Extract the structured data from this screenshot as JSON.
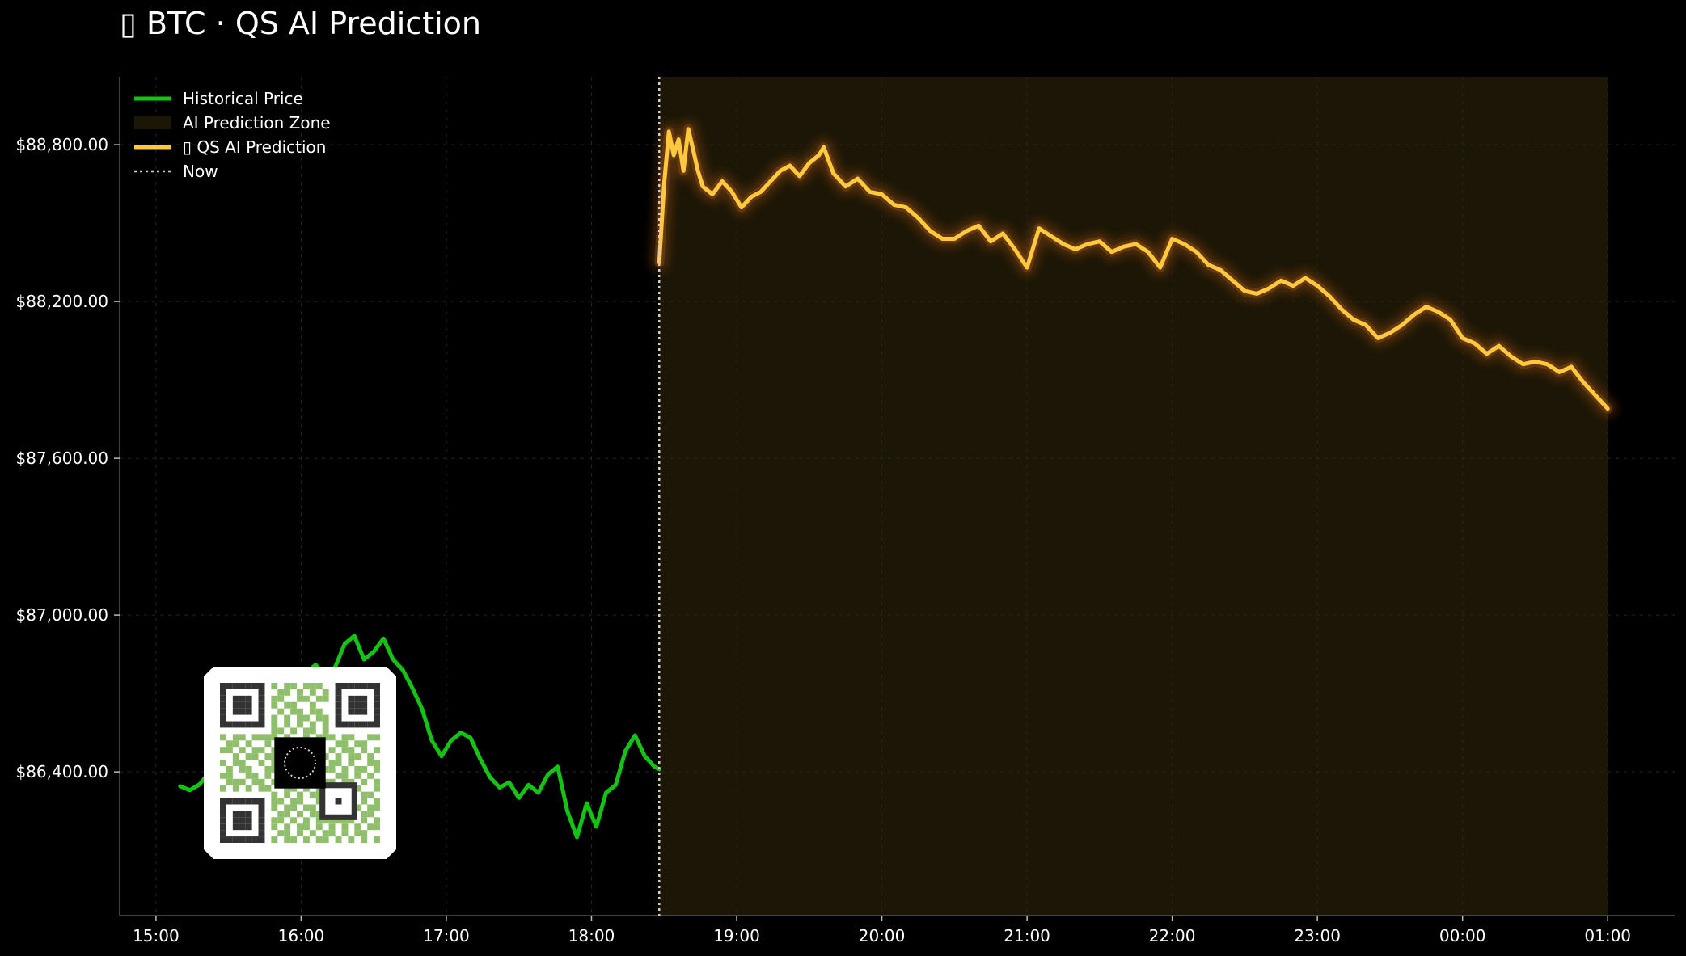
{
  "chart_data": {
    "type": "line",
    "title": "▯ BTC · QS AI Prediction",
    "xlabel": "",
    "ylabel": "",
    "x_ticks": [
      "15:00",
      "16:00",
      "17:00",
      "18:00",
      "19:00",
      "20:00",
      "21:00",
      "22:00",
      "23:00",
      "00:00",
      "01:00"
    ],
    "xlim": [
      "14:45",
      "01:28"
    ],
    "y_ticks": [
      86400,
      87000,
      87600,
      88200,
      88800
    ],
    "y_tick_labels": [
      "$86,400.00",
      "$87,000.00",
      "$87,600.00",
      "$88,200.00",
      "$88,800.00"
    ],
    "ylim": [
      85850,
      89060
    ],
    "grid": true,
    "legend_position": "top-left",
    "now_time": "18:28",
    "prediction_zone": [
      "18:28",
      "01:00"
    ],
    "legend": [
      {
        "key": "historical",
        "label": "Historical Price",
        "style": "line",
        "color": "#13c413"
      },
      {
        "key": "zone",
        "label": "AI Prediction Zone",
        "style": "patch",
        "color": "#1c1607"
      },
      {
        "key": "prediction",
        "label": "▯ QS AI Prediction",
        "style": "line",
        "color": "#ffc83d"
      },
      {
        "key": "now",
        "label": "Now",
        "style": "dotted",
        "color": "#cfcfcf"
      }
    ],
    "series": [
      {
        "name": "Historical Price",
        "color": "#13c413",
        "points": [
          [
            "15:10",
            86345
          ],
          [
            "15:14",
            86330
          ],
          [
            "15:18",
            86352
          ],
          [
            "15:22",
            86398
          ],
          [
            "15:26",
            86350
          ],
          [
            "15:30",
            86420
          ],
          [
            "15:34",
            86480
          ],
          [
            "15:38",
            86520
          ],
          [
            "15:42",
            86560
          ],
          [
            "15:46",
            86610
          ],
          [
            "15:50",
            86640
          ],
          [
            "15:54",
            86700
          ],
          [
            "15:58",
            86740
          ],
          [
            "16:02",
            86780
          ],
          [
            "16:06",
            86810
          ],
          [
            "16:10",
            86760
          ],
          [
            "16:14",
            86800
          ],
          [
            "16:18",
            86890
          ],
          [
            "16:22",
            86920
          ],
          [
            "16:26",
            86830
          ],
          [
            "16:30",
            86860
          ],
          [
            "16:34",
            86910
          ],
          [
            "16:38",
            86830
          ],
          [
            "16:42",
            86790
          ],
          [
            "16:46",
            86720
          ],
          [
            "16:50",
            86640
          ],
          [
            "16:54",
            86520
          ],
          [
            "16:58",
            86460
          ],
          [
            "17:02",
            86520
          ],
          [
            "17:06",
            86550
          ],
          [
            "17:10",
            86530
          ],
          [
            "17:14",
            86450
          ],
          [
            "17:18",
            86380
          ],
          [
            "17:22",
            86340
          ],
          [
            "17:26",
            86360
          ],
          [
            "17:30",
            86300
          ],
          [
            "17:34",
            86350
          ],
          [
            "17:38",
            86320
          ],
          [
            "17:42",
            86390
          ],
          [
            "17:46",
            86420
          ],
          [
            "17:50",
            86250
          ],
          [
            "17:54",
            86150
          ],
          [
            "17:58",
            86280
          ],
          [
            "18:02",
            86190
          ],
          [
            "18:06",
            86320
          ],
          [
            "18:10",
            86350
          ],
          [
            "18:14",
            86480
          ],
          [
            "18:18",
            86540
          ],
          [
            "18:22",
            86460
          ],
          [
            "18:26",
            86420
          ],
          [
            "18:28",
            86410
          ]
        ]
      },
      {
        "name": "▯ QS AI Prediction",
        "color": "#ffc83d",
        "points": [
          [
            "18:28",
            88350
          ],
          [
            "18:30",
            88650
          ],
          [
            "18:32",
            88850
          ],
          [
            "18:34",
            88760
          ],
          [
            "18:36",
            88820
          ],
          [
            "18:38",
            88700
          ],
          [
            "18:40",
            88860
          ],
          [
            "18:42",
            88780
          ],
          [
            "18:44",
            88700
          ],
          [
            "18:46",
            88640
          ],
          [
            "18:50",
            88610
          ],
          [
            "18:54",
            88660
          ],
          [
            "18:58",
            88620
          ],
          [
            "19:02",
            88560
          ],
          [
            "19:06",
            88600
          ],
          [
            "19:10",
            88620
          ],
          [
            "19:14",
            88660
          ],
          [
            "19:18",
            88700
          ],
          [
            "19:22",
            88720
          ],
          [
            "19:26",
            88680
          ],
          [
            "19:30",
            88730
          ],
          [
            "19:34",
            88760
          ],
          [
            "19:36",
            88790
          ],
          [
            "19:40",
            88690
          ],
          [
            "19:45",
            88640
          ],
          [
            "19:50",
            88670
          ],
          [
            "19:55",
            88620
          ],
          [
            "20:00",
            88610
          ],
          [
            "20:05",
            88570
          ],
          [
            "20:10",
            88560
          ],
          [
            "20:15",
            88520
          ],
          [
            "20:20",
            88470
          ],
          [
            "20:25",
            88440
          ],
          [
            "20:30",
            88440
          ],
          [
            "20:35",
            88470
          ],
          [
            "20:40",
            88490
          ],
          [
            "20:45",
            88430
          ],
          [
            "20:50",
            88460
          ],
          [
            "20:55",
            88400
          ],
          [
            "21:00",
            88330
          ],
          [
            "21:05",
            88480
          ],
          [
            "21:10",
            88450
          ],
          [
            "21:15",
            88420
          ],
          [
            "21:20",
            88400
          ],
          [
            "21:25",
            88420
          ],
          [
            "21:30",
            88430
          ],
          [
            "21:35",
            88390
          ],
          [
            "21:40",
            88410
          ],
          [
            "21:45",
            88420
          ],
          [
            "21:50",
            88390
          ],
          [
            "21:55",
            88330
          ],
          [
            "22:00",
            88440
          ],
          [
            "22:05",
            88420
          ],
          [
            "22:10",
            88390
          ],
          [
            "22:15",
            88340
          ],
          [
            "22:20",
            88320
          ],
          [
            "22:25",
            88280
          ],
          [
            "22:30",
            88240
          ],
          [
            "22:35",
            88230
          ],
          [
            "22:40",
            88250
          ],
          [
            "22:45",
            88280
          ],
          [
            "22:50",
            88260
          ],
          [
            "22:55",
            88290
          ],
          [
            "23:00",
            88260
          ],
          [
            "23:05",
            88220
          ],
          [
            "23:10",
            88170
          ],
          [
            "23:15",
            88130
          ],
          [
            "23:20",
            88110
          ],
          [
            "23:25",
            88060
          ],
          [
            "23:30",
            88080
          ],
          [
            "23:35",
            88110
          ],
          [
            "23:40",
            88150
          ],
          [
            "23:45",
            88180
          ],
          [
            "23:50",
            88160
          ],
          [
            "23:55",
            88130
          ],
          [
            "00:00",
            88060
          ],
          [
            "00:05",
            88040
          ],
          [
            "00:10",
            88000
          ],
          [
            "00:15",
            88030
          ],
          [
            "00:20",
            87990
          ],
          [
            "00:25",
            87960
          ],
          [
            "00:30",
            87970
          ],
          [
            "00:35",
            87960
          ],
          [
            "00:40",
            87930
          ],
          [
            "00:45",
            87950
          ],
          [
            "00:50",
            87890
          ],
          [
            "00:55",
            87840
          ],
          [
            "01:00",
            87790
          ]
        ]
      }
    ]
  },
  "qr_code": {
    "name": "qr-code",
    "cells": [
      "1111111010110111001111111",
      "1000001001101010101000001",
      "1011101011001101101011101",
      "1011101010110010001011101",
      "1011101001011011001011101",
      "1000001010101101101000001",
      "1111111010101010101111111",
      "0000000011010110100000000",
      "1011011110100101110110011",
      "0110100101011011001101100",
      "1101011010000000010110101",
      "0010110110000000101011010",
      "1011001010000000011010011",
      "0101100110000000110101101",
      "1100110100000000001101010",
      "0111011011011010110110101",
      "1010101100110101001011001",
      "0000000010101011100010110",
      "1111111011011001111110101",
      "1000001010110110100011011",
      "1011101001101011101010110",
      "1011101011010101111110101",
      "1011101010101101010101011",
      "1000001001101010110101100",
      "1111111010110101101010101"
    ]
  }
}
